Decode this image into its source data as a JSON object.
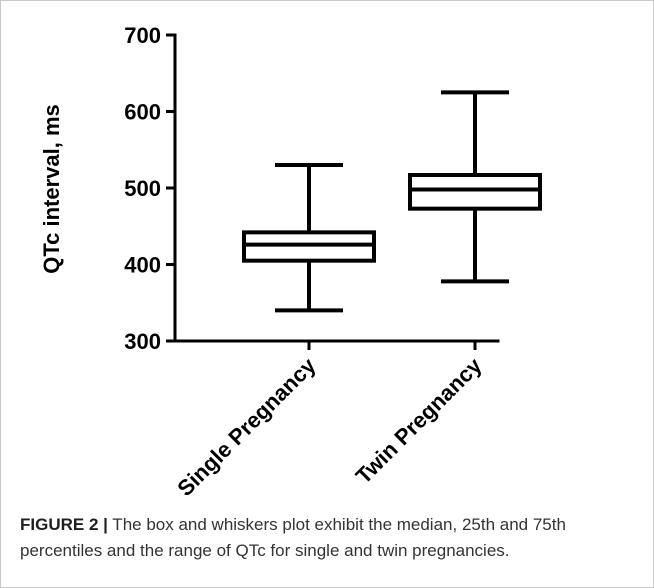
{
  "chart_data": {
    "type": "box",
    "categories": [
      "Single Pregnancy",
      "Twin Pregnancy"
    ],
    "boxes": [
      {
        "category": "Single Pregnancy",
        "min": 340,
        "q1": 405,
        "median": 426,
        "q3": 442,
        "max": 530
      },
      {
        "category": "Twin Pregnancy",
        "min": 378,
        "q1": 473,
        "median": 498,
        "q3": 517,
        "max": 625
      }
    ],
    "ylabel": "QTc interval, ms",
    "xlabel": "",
    "ylim": [
      300,
      700
    ],
    "yticks": [
      300,
      400,
      500,
      600,
      700
    ],
    "ytick_labels": [
      "300",
      "400",
      "500",
      "600",
      "700"
    ],
    "grid": false,
    "colors": {
      "stroke": "#000000",
      "fill": "#ffffff"
    }
  },
  "caption": {
    "prefix": "FIGURE 2 |",
    "text": " The box and whiskers plot exhibit the median, 25th and 75th percentiles and the range of QTc for single and twin pregnancies."
  }
}
